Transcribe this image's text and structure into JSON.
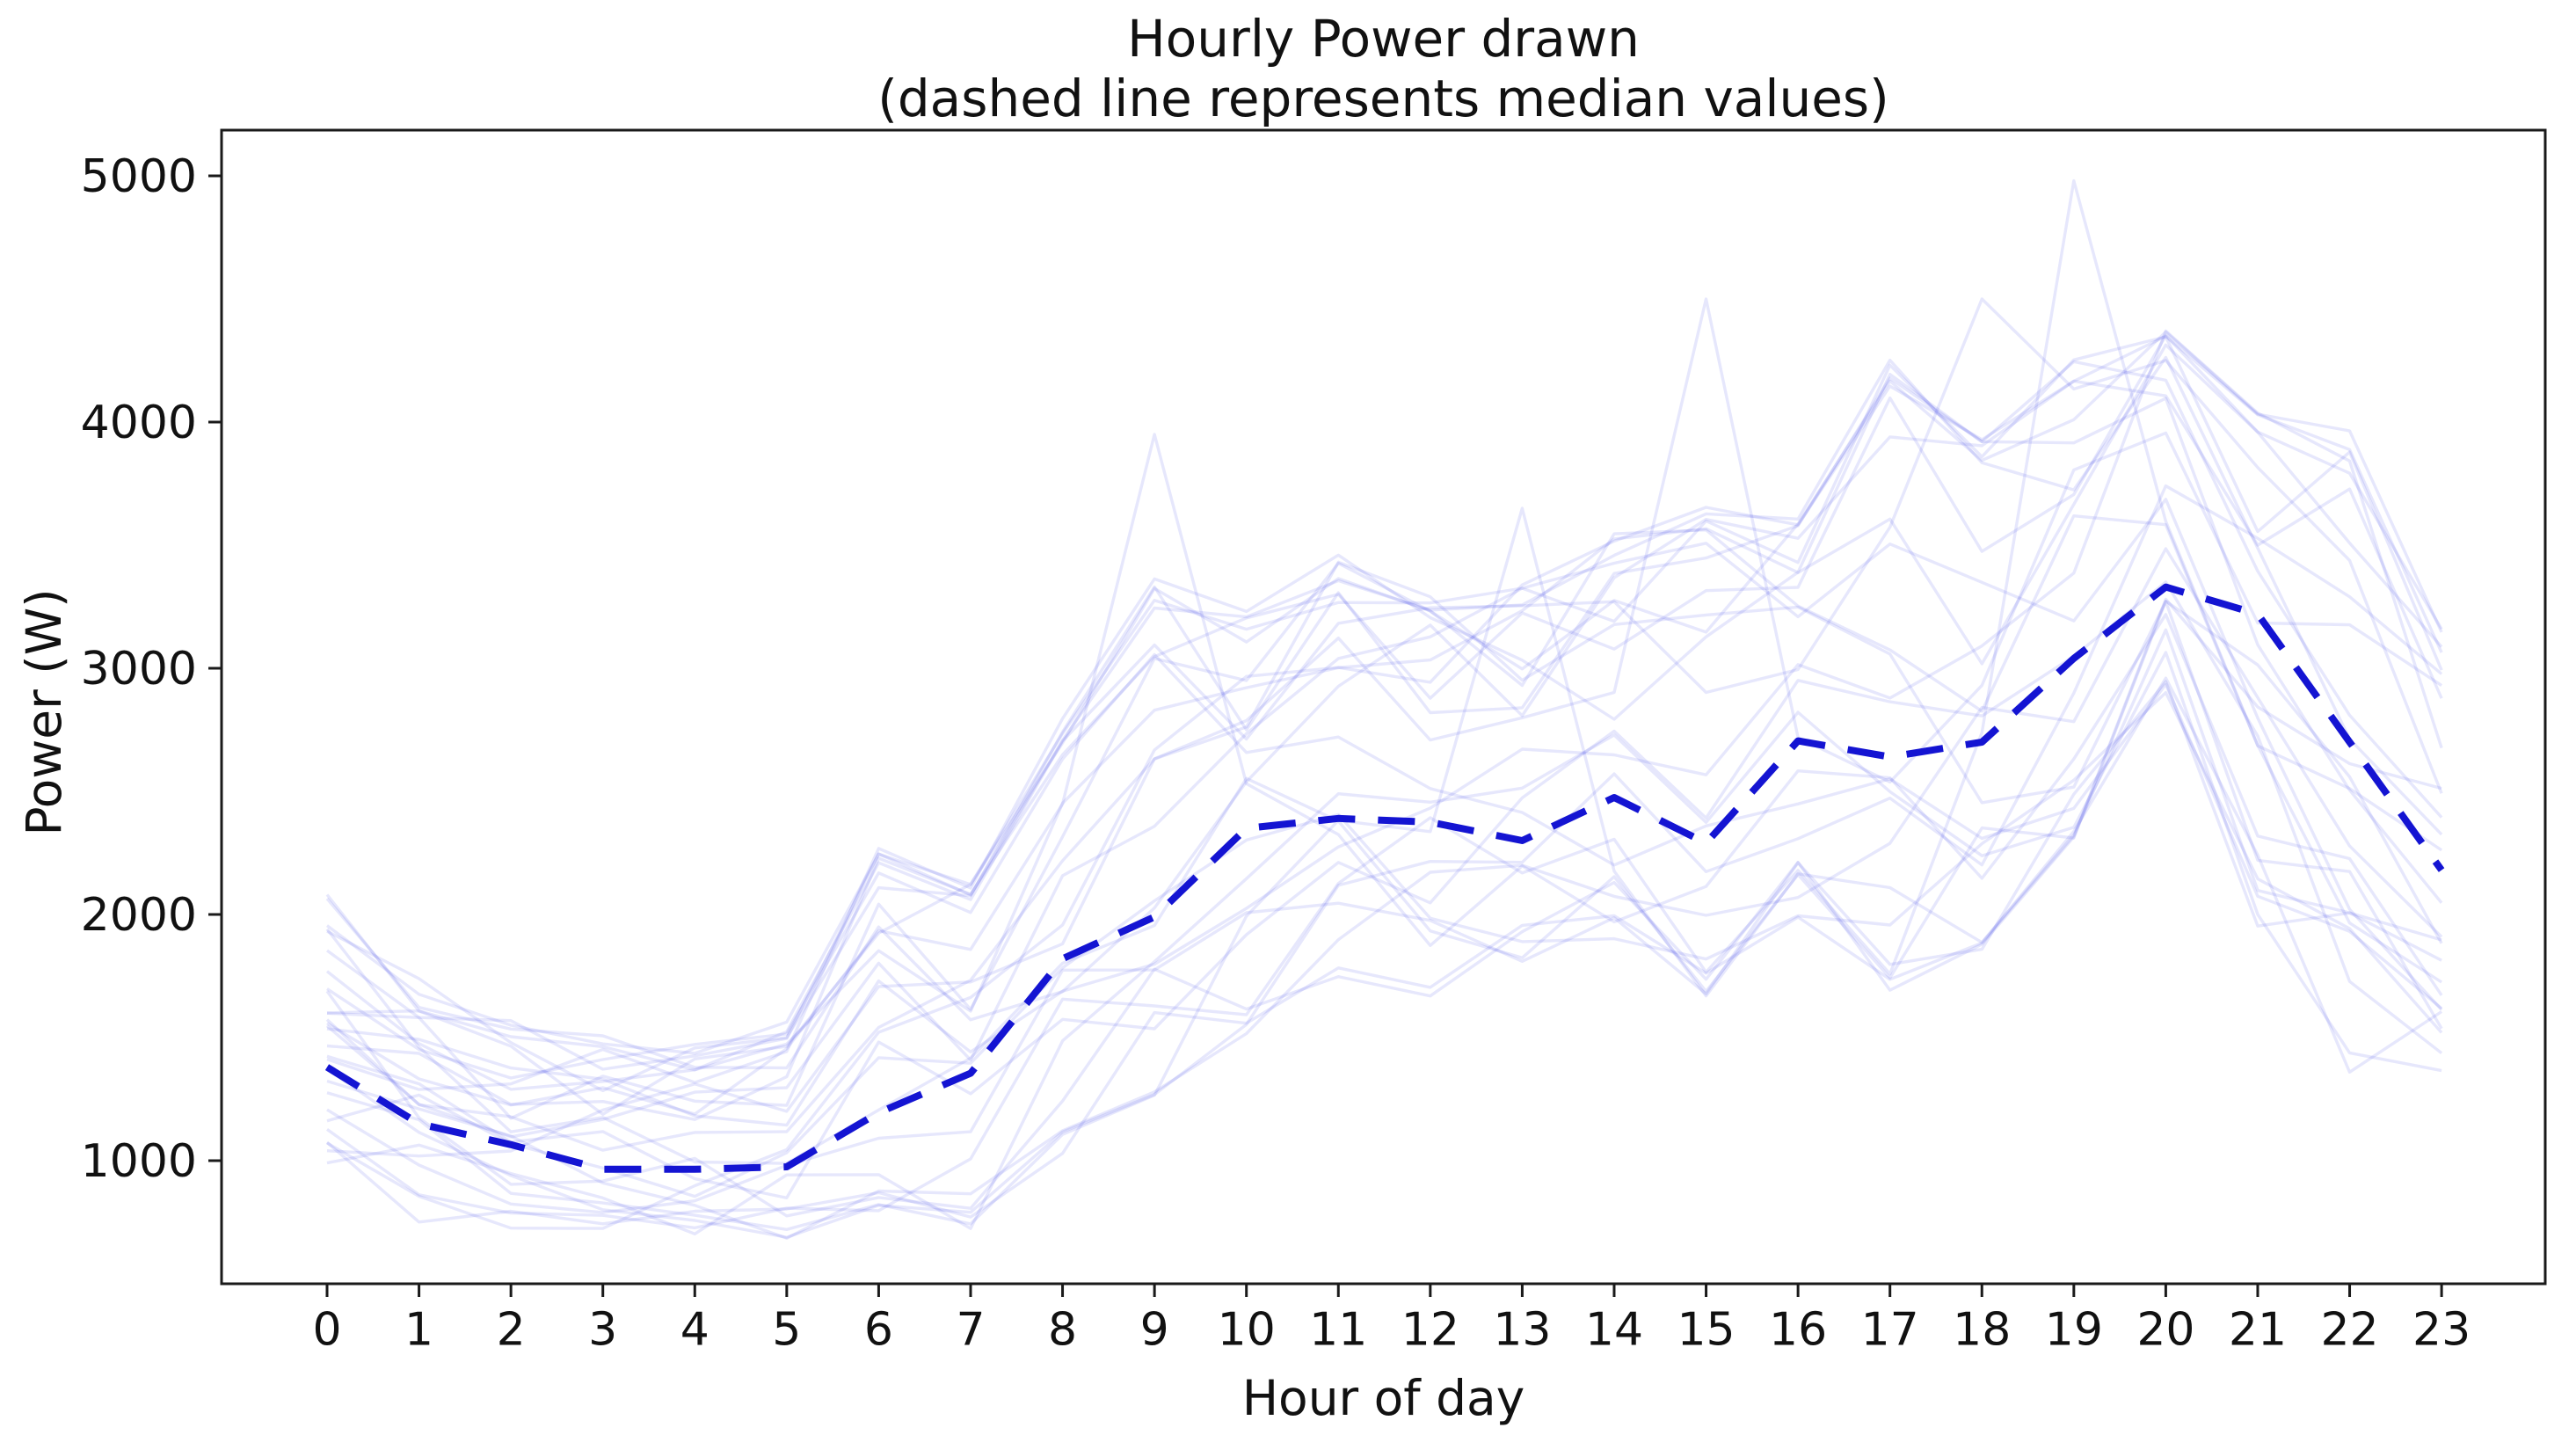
{
  "figure": {
    "title_line1": "Hourly Power drawn",
    "title_line2": "(dashed line represents median values)",
    "xlabel": "Hour of day",
    "ylabel": "Power (W)",
    "background_color": "#ffffff",
    "spine_color": "#1a1a1a",
    "text_color": "#111111"
  },
  "chart_data": {
    "type": "line",
    "title": "Hourly Power drawn (dashed line represents median values)",
    "xlabel": "Hour of day",
    "ylabel": "Power (W)",
    "grid": false,
    "legend_position": "none",
    "x": [
      0,
      1,
      2,
      3,
      4,
      5,
      6,
      7,
      8,
      9,
      10,
      11,
      12,
      13,
      14,
      15,
      16,
      17,
      18,
      19,
      20,
      21,
      22,
      23
    ],
    "x_tick_labels": [
      "0",
      "1",
      "2",
      "3",
      "4",
      "5",
      "6",
      "7",
      "8",
      "9",
      "10",
      "11",
      "12",
      "13",
      "14",
      "15",
      "16",
      "17",
      "18",
      "19",
      "20",
      "21",
      "22",
      "23"
    ],
    "y_ticks": [
      1000,
      2000,
      3000,
      4000,
      5000
    ],
    "xlim": [
      -1.15,
      24.15
    ],
    "ylim": [
      500,
      5190
    ],
    "series": [
      {
        "name": "median",
        "style": "dashed",
        "color": "#1414d2",
        "line_width": 8,
        "values": [
          1380,
          1150,
          1065,
          965,
          965,
          975,
          1195,
          1355,
          1820,
          1990,
          2350,
          2390,
          2375,
          2300,
          2475,
          2290,
          2705,
          2640,
          2700,
          3040,
          3330,
          3220,
          2700,
          2180
        ]
      }
    ],
    "ensemble": {
      "description": "many faint individual-day hourly power curves behind the median",
      "count": 28,
      "color": "#3c46e6",
      "opacity": 0.13,
      "line_width": 3.4,
      "seed": 42,
      "envelope_low": [
        880,
        800,
        760,
        740,
        730,
        720,
        780,
        760,
        1080,
        1250,
        1500,
        1750,
        1700,
        1750,
        1950,
        1700,
        2000,
        1750,
        1900,
        2350,
        2900,
        2000,
        1400,
        1400
      ],
      "envelope_high": [
        2030,
        1700,
        1520,
        1450,
        1430,
        1500,
        2270,
        2100,
        2750,
        3300,
        3170,
        3400,
        3250,
        3300,
        3500,
        3600,
        3600,
        4200,
        3900,
        4200,
        4350,
        4000,
        3900,
        3100
      ],
      "notable_peaks": [
        [
          9,
          3950
        ],
        [
          15,
          4500
        ],
        [
          19,
          4980
        ],
        [
          20,
          4370
        ],
        [
          18,
          4500
        ],
        [
          13,
          3650
        ]
      ]
    }
  }
}
